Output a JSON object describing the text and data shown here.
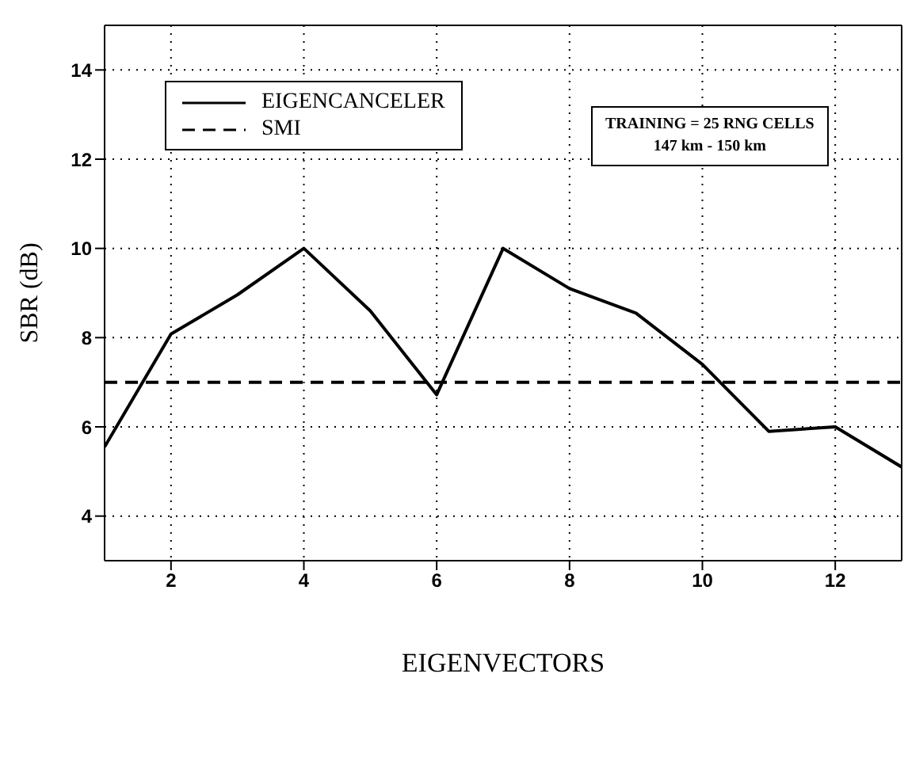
{
  "chart_data": {
    "type": "line",
    "xlabel": "EIGENVECTORS",
    "ylabel": "SBR (dB)",
    "x": [
      1,
      2,
      3,
      4,
      5,
      6,
      7,
      8,
      9,
      10,
      11,
      12,
      13
    ],
    "series": [
      {
        "name": "EIGENCANCELER",
        "color": "#000000",
        "line_style": "solid",
        "values": [
          5.55,
          8.08,
          8.96,
          10.0,
          8.6,
          6.72,
          10.0,
          9.1,
          8.55,
          7.4,
          5.9,
          6.0,
          5.1
        ]
      },
      {
        "name": "SMI",
        "color": "#000000",
        "line_style": "dashed",
        "values": [
          7.0,
          7.0,
          7.0,
          7.0,
          7.0,
          7.0,
          7.0,
          7.0,
          7.0,
          7.0,
          7.0,
          7.0,
          7.0
        ]
      }
    ],
    "xlim": [
      1,
      13
    ],
    "xticks": [
      2,
      4,
      6,
      8,
      10,
      12
    ],
    "ylim": [
      3,
      15
    ],
    "yticks": [
      4,
      6,
      8,
      10,
      12,
      14
    ],
    "grid": true,
    "legend": "top left",
    "marker": "none",
    "annotations": [
      "TRAINING = 25 RNG CELLS",
      "147 km - 150 km"
    ]
  }
}
